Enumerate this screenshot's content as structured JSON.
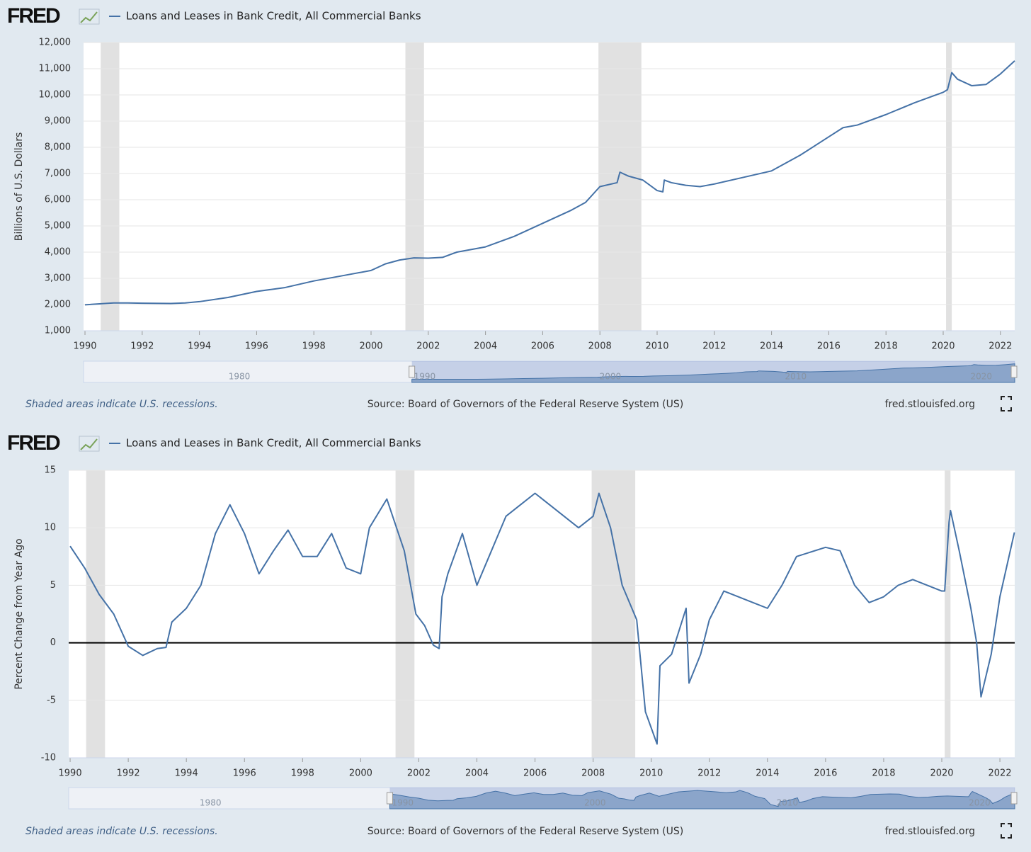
{
  "chart_data": [
    {
      "type": "line",
      "brand": "FRED",
      "title": "Loans and Leases in Bank Credit, All Commercial Banks",
      "ylabel": "Billions of U.S. Dollars",
      "note": "Shaded areas indicate U.S. recessions.",
      "source": "Source: Board of Governors of the Federal Reserve System (US)",
      "site": "fred.stlouisfed.org",
      "xlim": [
        1989.95,
        2022.5
      ],
      "xticks": [
        1990,
        1992,
        1994,
        1996,
        1998,
        2000,
        2002,
        2004,
        2006,
        2008,
        2010,
        2012,
        2014,
        2016,
        2018,
        2020,
        2022
      ],
      "ylim": [
        1000,
        12000
      ],
      "yticks": [
        {
          "value": 1000,
          "label": "1,000"
        },
        {
          "value": 2000,
          "label": "2,000"
        },
        {
          "value": 3000,
          "label": "3,000"
        },
        {
          "value": 4000,
          "label": "4,000"
        },
        {
          "value": 5000,
          "label": "5,000"
        },
        {
          "value": 6000,
          "label": "6,000"
        },
        {
          "value": 7000,
          "label": "7,000"
        },
        {
          "value": 8000,
          "label": "8,000"
        },
        {
          "value": 9000,
          "label": "9,000"
        },
        {
          "value": 10000,
          "label": "10,000"
        },
        {
          "value": 11000,
          "label": "11,000"
        },
        {
          "value": 12000,
          "label": "12,000"
        }
      ],
      "grid": true,
      "zero_line": false,
      "recessions": [
        [
          1990.55,
          1991.2
        ],
        [
          2001.2,
          2001.85
        ],
        [
          2007.95,
          2009.45
        ],
        [
          2020.1,
          2020.3
        ]
      ],
      "nav_xlim": [
        1972.3,
        2022.5
      ],
      "nav_ticks": [
        1980,
        1990,
        2000,
        2010,
        2020
      ],
      "x": [
        1990,
        1991,
        1991.5,
        1992,
        1993,
        1993.5,
        1994,
        1995,
        1996,
        1997,
        1998,
        1999,
        2000,
        2000.5,
        2001,
        2001.5,
        2002,
        2002.5,
        2003,
        2004,
        2005,
        2006,
        2007,
        2007.5,
        2008,
        2008.6,
        2008.7,
        2009,
        2009.5,
        2010,
        2010.2,
        2010.25,
        2010.5,
        2011,
        2011.5,
        2012,
        2013,
        2014,
        2015,
        2016,
        2016.5,
        2017,
        2018,
        2019,
        2020,
        2020.15,
        2020.3,
        2020.5,
        2021,
        2021.5,
        2022,
        2022.5
      ],
      "series": [
        {
          "name": "Loans and Leases in Bank Credit, All Commercial Banks",
          "color": "#4572a7",
          "values": [
            1990,
            2060,
            2060,
            2050,
            2040,
            2060,
            2110,
            2270,
            2500,
            2650,
            2900,
            3100,
            3300,
            3550,
            3700,
            3780,
            3770,
            3800,
            4000,
            4200,
            4600,
            5100,
            5600,
            5900,
            6500,
            6650,
            7050,
            6900,
            6750,
            6350,
            6300,
            6750,
            6650,
            6550,
            6500,
            6600,
            6850,
            7100,
            7700,
            8400,
            8750,
            8850,
            9250,
            9700,
            10100,
            10200,
            10850,
            10600,
            10350,
            10400,
            10800,
            11300
          ]
        }
      ]
    },
    {
      "type": "line",
      "brand": "FRED",
      "title": "Loans and Leases in Bank Credit, All Commercial Banks",
      "ylabel": "Percent Change from Year Ago",
      "note": "Shaded areas indicate U.S. recessions.",
      "source": "Source: Board of Governors of the Federal Reserve System (US)",
      "site": "fred.stlouisfed.org",
      "xlim": [
        1989.95,
        2022.51
      ],
      "xticks": [
        1990,
        1992,
        1994,
        1996,
        1998,
        2000,
        2002,
        2004,
        2006,
        2008,
        2010,
        2012,
        2014,
        2016,
        2018,
        2020,
        2022
      ],
      "ylim": [
        -10,
        15
      ],
      "yticks": [
        -10,
        -5,
        0,
        5,
        10,
        15
      ],
      "grid": true,
      "zero_line": true,
      "recessions": [
        [
          1990.55,
          1991.2
        ],
        [
          2001.2,
          2001.85
        ],
        [
          2007.95,
          2009.45
        ],
        [
          2020.1,
          2020.3
        ]
      ],
      "nav_xlim": [
        1973.3,
        2022.5
      ],
      "nav_ticks": [
        1980,
        1990,
        2000,
        2010,
        2020
      ],
      "x": [
        1990,
        1990.5,
        1991,
        1991.5,
        1992,
        1992.5,
        1993,
        1993.3,
        1993.5,
        1994,
        1994.5,
        1995,
        1995.5,
        1996,
        1996.5,
        1997,
        1997.5,
        1998,
        1998.5,
        1999,
        1999.5,
        2000,
        2000.3,
        2000.9,
        2001.5,
        2001.9,
        2002.2,
        2002.5,
        2002.7,
        2002.8,
        2003,
        2003.5,
        2004,
        2004.5,
        2005,
        2005.5,
        2006,
        2006.5,
        2007,
        2007.5,
        2008,
        2008.2,
        2008.6,
        2009,
        2009.5,
        2009.8,
        2010.2,
        2010.3,
        2010.7,
        2011.2,
        2011.3,
        2011.7,
        2012,
        2012.5,
        2013,
        2013.5,
        2014,
        2014.5,
        2015,
        2016,
        2016.5,
        2017,
        2017.5,
        2018,
        2018.5,
        2019,
        2019.5,
        2020,
        2020.1,
        2020.25,
        2020.3,
        2020.6,
        2021,
        2021.2,
        2021.35,
        2021.7,
        2022,
        2022.5
      ],
      "series": [
        {
          "name": "Loans and Leases in Bank Credit, All Commercial Banks",
          "color": "#4572a7",
          "values": [
            8.4,
            6.5,
            4.2,
            2.5,
            -0.3,
            -1.1,
            -0.5,
            -0.4,
            1.8,
            3,
            5,
            9.5,
            12,
            9.5,
            6,
            8,
            9.8,
            7.5,
            7.5,
            9.5,
            6.5,
            6,
            10,
            12.5,
            8,
            2.5,
            1.5,
            -0.2,
            -0.5,
            4,
            6,
            9.5,
            5,
            8,
            11,
            12,
            13,
            12,
            11,
            10,
            11,
            13,
            10,
            5,
            2,
            -6,
            -8.8,
            -2,
            -1,
            3,
            -3.5,
            -1,
            2,
            4.5,
            4,
            3.5,
            3,
            5,
            7.5,
            8.3,
            8,
            5,
            3.5,
            4,
            5,
            5.5,
            5,
            4.5,
            4.5,
            10.5,
            11.5,
            8,
            3,
            0,
            -4.7,
            -1,
            4,
            9.6
          ]
        }
      ]
    }
  ]
}
